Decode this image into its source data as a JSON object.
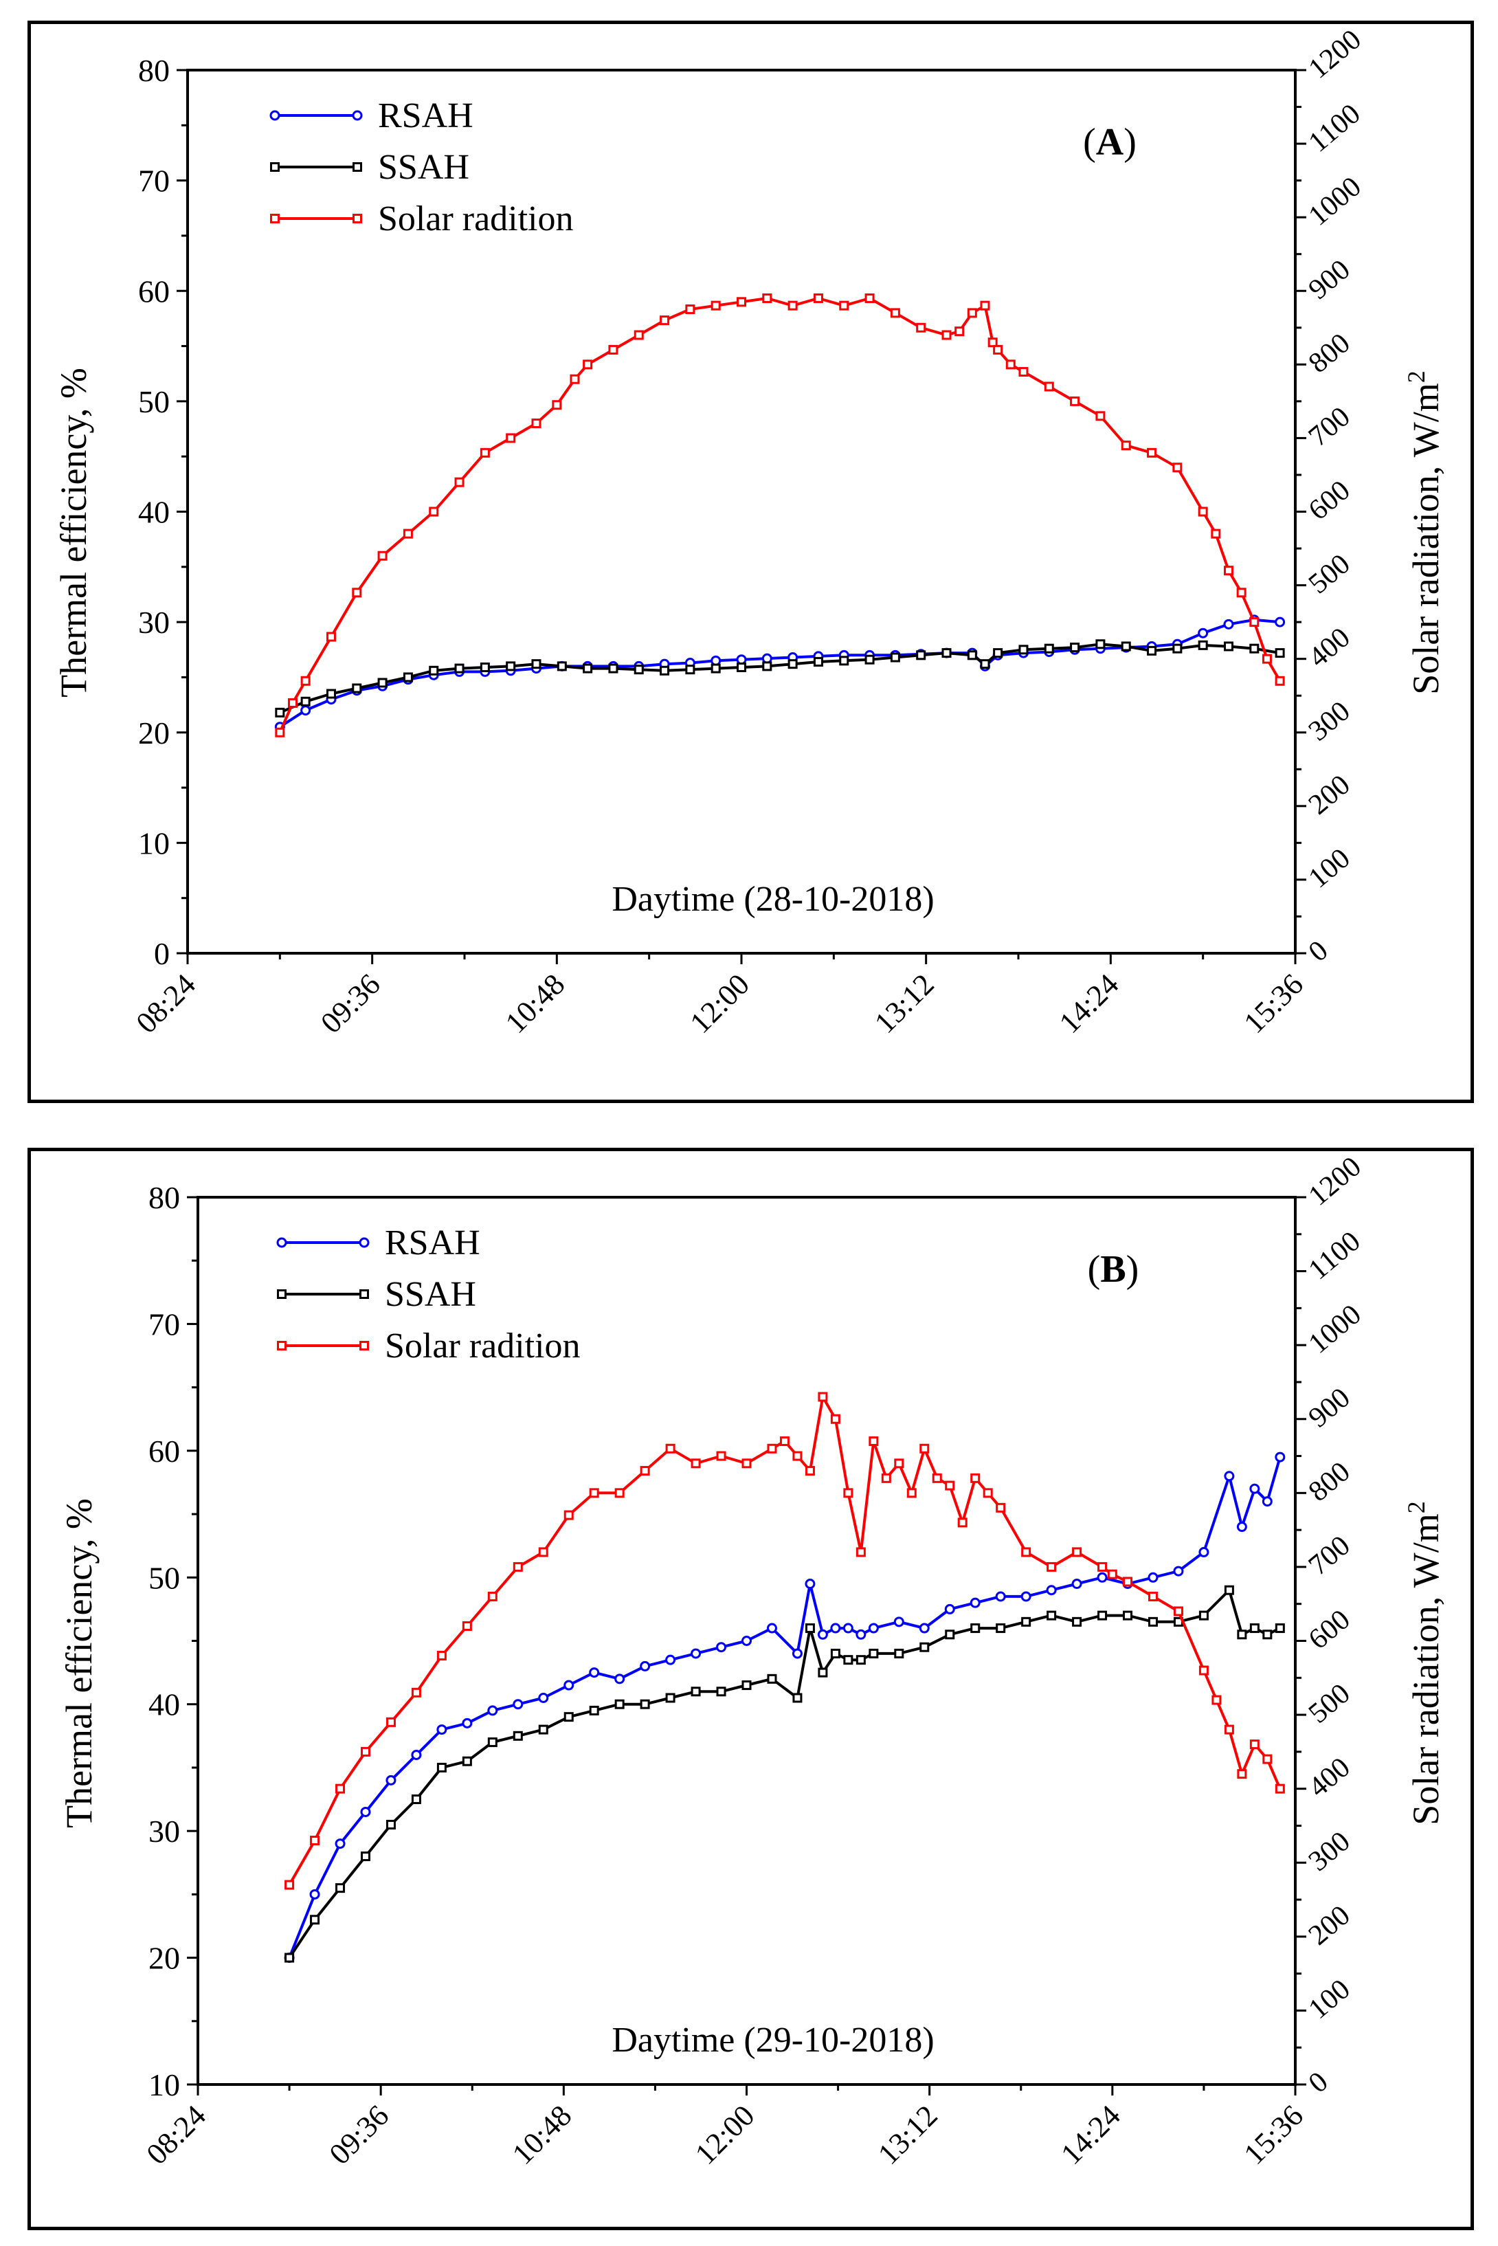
{
  "chart_data": [
    {
      "type": "line",
      "panel_label": "(A)",
      "panel_letter": "A",
      "xlabel": "Daytime (28-10-2018)",
      "ylabel": "Thermal efficiency, %",
      "y2label": "Solar radiation, W/m",
      "y2label_sup": "2",
      "x_ticks": [
        "08:24",
        "09:36",
        "10:48",
        "12:00",
        "13:12",
        "14:24",
        "15:36"
      ],
      "x_tick_minutes": [
        504,
        576,
        648,
        720,
        792,
        864,
        936
      ],
      "xlim": [
        504,
        936
      ],
      "ylim": [
        0,
        80
      ],
      "y_ticks": [
        0,
        10,
        20,
        30,
        40,
        50,
        60,
        70,
        80
      ],
      "y2lim": [
        0,
        1200
      ],
      "y2_ticks": [
        0,
        100,
        200,
        300,
        400,
        500,
        600,
        700,
        800,
        900,
        1000,
        1100,
        1200
      ],
      "legend": [
        "RSAH",
        "SSAH",
        "Solar radition"
      ],
      "series": [
        {
          "name": "RSAH",
          "axis": "left",
          "color": "#0000ff",
          "marker": "circle",
          "x": [
            540,
            550,
            560,
            570,
            580,
            590,
            600,
            610,
            620,
            630,
            640,
            650,
            660,
            670,
            680,
            690,
            700,
            710,
            720,
            730,
            740,
            750,
            760,
            770,
            780,
            790,
            800,
            810,
            815,
            820,
            830,
            840,
            850,
            860,
            870,
            880,
            890,
            900,
            910,
            920,
            930
          ],
          "values": [
            20.5,
            22.0,
            23.0,
            23.8,
            24.2,
            24.8,
            25.2,
            25.5,
            25.5,
            25.6,
            25.8,
            26.0,
            26.0,
            26.0,
            26.0,
            26.2,
            26.3,
            26.5,
            26.6,
            26.7,
            26.8,
            26.9,
            27.0,
            27.0,
            27.0,
            27.1,
            27.2,
            27.2,
            26.0,
            27.0,
            27.2,
            27.3,
            27.5,
            27.6,
            27.7,
            27.8,
            28.0,
            29.0,
            29.8,
            30.2,
            30.0
          ]
        },
        {
          "name": "SSAH",
          "axis": "left",
          "color": "#000000",
          "marker": "square",
          "x": [
            540,
            550,
            560,
            570,
            580,
            590,
            600,
            610,
            620,
            630,
            640,
            650,
            660,
            670,
            680,
            690,
            700,
            710,
            720,
            730,
            740,
            750,
            760,
            770,
            780,
            790,
            800,
            810,
            815,
            820,
            830,
            840,
            850,
            860,
            870,
            880,
            890,
            900,
            910,
            920,
            930
          ],
          "values": [
            21.8,
            22.8,
            23.5,
            24.0,
            24.5,
            25.0,
            25.6,
            25.8,
            25.9,
            26.0,
            26.2,
            26.0,
            25.8,
            25.8,
            25.7,
            25.6,
            25.7,
            25.8,
            25.9,
            26.0,
            26.2,
            26.4,
            26.5,
            26.6,
            26.8,
            27.0,
            27.2,
            27.0,
            26.2,
            27.2,
            27.5,
            27.6,
            27.7,
            28.0,
            27.8,
            27.4,
            27.6,
            27.9,
            27.8,
            27.6,
            27.2
          ]
        },
        {
          "name": "Solar radition",
          "axis": "right",
          "color": "#ff0000",
          "marker": "square",
          "x": [
            540,
            545,
            550,
            560,
            570,
            580,
            590,
            600,
            610,
            620,
            630,
            640,
            648,
            655,
            660,
            670,
            680,
            690,
            700,
            710,
            720,
            730,
            740,
            750,
            760,
            770,
            780,
            790,
            800,
            805,
            810,
            815,
            818,
            820,
            825,
            830,
            840,
            850,
            860,
            870,
            880,
            890,
            900,
            905,
            910,
            915,
            920,
            925,
            930
          ],
          "values": [
            300,
            340,
            370,
            430,
            490,
            540,
            570,
            600,
            640,
            680,
            700,
            720,
            745,
            780,
            800,
            820,
            840,
            860,
            875,
            880,
            885,
            890,
            880,
            890,
            880,
            890,
            870,
            850,
            840,
            845,
            870,
            880,
            830,
            820,
            800,
            790,
            770,
            750,
            730,
            690,
            680,
            660,
            600,
            570,
            520,
            490,
            450,
            400,
            370
          ]
        }
      ]
    },
    {
      "type": "line",
      "panel_label": "(B)",
      "panel_letter": "B",
      "xlabel": "Daytime (29-10-2018)",
      "ylabel": "Thermal efficiency, %",
      "y2label": "Solar radiation, W/m",
      "y2label_sup": "2",
      "x_ticks": [
        "08:24",
        "09:36",
        "10:48",
        "12:00",
        "13:12",
        "14:24",
        "15:36"
      ],
      "x_tick_minutes": [
        504,
        576,
        648,
        720,
        792,
        864,
        936
      ],
      "xlim": [
        504,
        936
      ],
      "ylim": [
        10,
        80
      ],
      "y_ticks": [
        10,
        20,
        30,
        40,
        50,
        60,
        70,
        80
      ],
      "y2lim": [
        0,
        1200
      ],
      "y2_ticks": [
        0,
        100,
        200,
        300,
        400,
        500,
        600,
        700,
        800,
        900,
        1000,
        1100,
        1200
      ],
      "legend": [
        "RSAH",
        "SSAH",
        "Solar radition"
      ],
      "series": [
        {
          "name": "RSAH",
          "axis": "left",
          "color": "#0000ff",
          "marker": "circle",
          "x": [
            540,
            550,
            560,
            570,
            580,
            590,
            600,
            610,
            620,
            630,
            640,
            650,
            660,
            670,
            680,
            690,
            700,
            710,
            720,
            730,
            740,
            745,
            750,
            755,
            760,
            765,
            770,
            780,
            790,
            800,
            810,
            820,
            830,
            840,
            850,
            860,
            870,
            880,
            890,
            900,
            910,
            915,
            920,
            925,
            930
          ],
          "values": [
            20.0,
            25.0,
            29.0,
            31.5,
            34.0,
            36.0,
            38.0,
            38.5,
            39.5,
            40.0,
            40.5,
            41.5,
            42.5,
            42.0,
            43.0,
            43.5,
            44.0,
            44.5,
            45.0,
            46.0,
            44.0,
            49.5,
            45.5,
            46.0,
            46.0,
            45.5,
            46.0,
            46.5,
            46.0,
            47.5,
            48.0,
            48.5,
            48.5,
            49.0,
            49.5,
            50.0,
            49.5,
            50.0,
            50.5,
            52.0,
            58.0,
            54.0,
            57.0,
            56.0,
            59.5
          ]
        },
        {
          "name": "SSAH",
          "axis": "left",
          "color": "#000000",
          "marker": "square",
          "x": [
            540,
            550,
            560,
            570,
            580,
            590,
            600,
            610,
            620,
            630,
            640,
            650,
            660,
            670,
            680,
            690,
            700,
            710,
            720,
            730,
            740,
            745,
            750,
            755,
            760,
            765,
            770,
            780,
            790,
            800,
            810,
            820,
            830,
            840,
            850,
            860,
            870,
            880,
            890,
            900,
            910,
            915,
            920,
            925,
            930
          ],
          "values": [
            20.0,
            23.0,
            25.5,
            28.0,
            30.5,
            32.5,
            35.0,
            35.5,
            37.0,
            37.5,
            38.0,
            39.0,
            39.5,
            40.0,
            40.0,
            40.5,
            41.0,
            41.0,
            41.5,
            42.0,
            40.5,
            46.0,
            42.5,
            44.0,
            43.5,
            43.5,
            44.0,
            44.0,
            44.5,
            45.5,
            46.0,
            46.0,
            46.5,
            47.0,
            46.5,
            47.0,
            47.0,
            46.5,
            46.5,
            47.0,
            49.0,
            45.5,
            46.0,
            45.5,
            46.0
          ]
        },
        {
          "name": "Solar radition",
          "axis": "right",
          "color": "#ff0000",
          "marker": "square",
          "x": [
            540,
            550,
            560,
            570,
            580,
            590,
            600,
            610,
            620,
            630,
            640,
            650,
            660,
            670,
            680,
            690,
            700,
            710,
            720,
            730,
            735,
            740,
            745,
            750,
            755,
            760,
            765,
            770,
            775,
            780,
            785,
            790,
            795,
            800,
            805,
            810,
            815,
            820,
            830,
            840,
            850,
            860,
            864,
            870,
            880,
            890,
            900,
            905,
            910,
            915,
            920,
            925,
            930
          ],
          "values": [
            270,
            330,
            400,
            450,
            490,
            530,
            580,
            620,
            660,
            700,
            720,
            770,
            800,
            800,
            830,
            860,
            840,
            850,
            840,
            860,
            870,
            850,
            830,
            930,
            900,
            800,
            720,
            870,
            820,
            840,
            800,
            860,
            820,
            810,
            760,
            820,
            800,
            780,
            720,
            700,
            720,
            700,
            690,
            680,
            660,
            640,
            560,
            520,
            480,
            420,
            460,
            440,
            400
          ]
        }
      ]
    }
  ]
}
